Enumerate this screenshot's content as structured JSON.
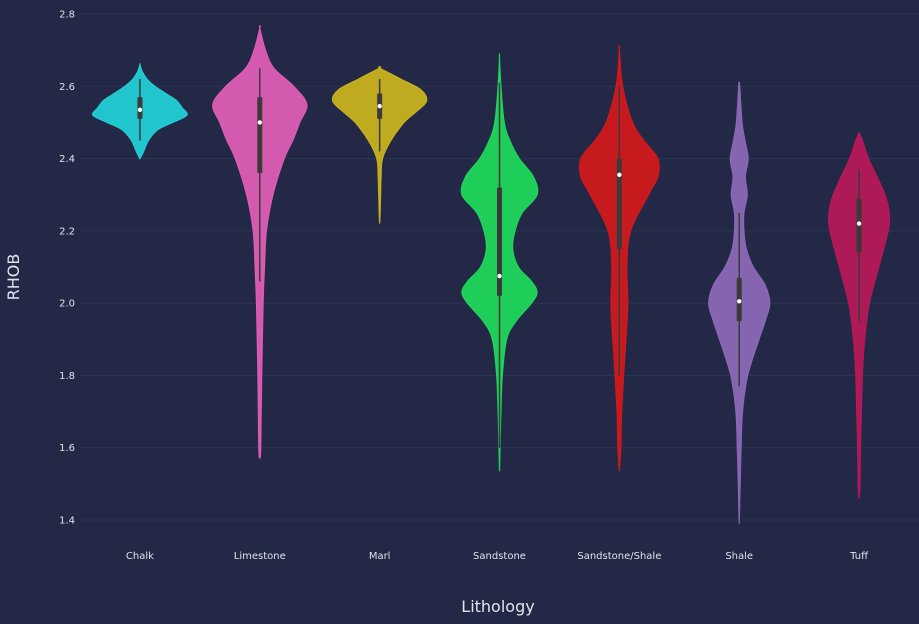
{
  "chart_data": {
    "type": "violin",
    "title": "",
    "xlabel": "Lithology",
    "ylabel": "RHOB",
    "ylim": [
      1.35,
      2.82
    ],
    "yticks": [
      1.4,
      1.6,
      1.8,
      2.0,
      2.2,
      2.4,
      2.6,
      2.8
    ],
    "ytick_labels": [
      "1.4",
      "1.6",
      "1.8",
      "2.0",
      "2.2",
      "2.4",
      "2.6",
      "2.8"
    ],
    "grid": "horizontal",
    "background_color": "#222845",
    "grid_color": "#2c3454",
    "text_color": "#e2e4ee",
    "box_color": "#3a3a3a",
    "median_color": "#ffffff",
    "categories": [
      "Chalk",
      "Limestone",
      "Marl",
      "Sandstone",
      "Sandstone/Shale",
      "Shale",
      "Tuff"
    ],
    "series": [
      {
        "color": "#22ced6",
        "min": 2.4,
        "max": 2.66,
        "q1": 2.51,
        "median": 2.535,
        "q3": 2.57,
        "whisker_low": 2.45,
        "whisker_high": 2.62,
        "density": [
          [
            2.4,
            0.0
          ],
          [
            2.42,
            0.08
          ],
          [
            2.45,
            0.18
          ],
          [
            2.48,
            0.38
          ],
          [
            2.5,
            0.7
          ],
          [
            2.52,
            1.0
          ],
          [
            2.54,
            0.9
          ],
          [
            2.56,
            0.78
          ],
          [
            2.58,
            0.55
          ],
          [
            2.6,
            0.32
          ],
          [
            2.62,
            0.15
          ],
          [
            2.64,
            0.05
          ],
          [
            2.66,
            0.0
          ]
        ]
      },
      {
        "color": "#dd5db5",
        "min": 1.57,
        "max": 2.76,
        "q1": 2.36,
        "median": 2.5,
        "q3": 2.57,
        "whisker_low": 2.06,
        "whisker_high": 2.65,
        "density": [
          [
            1.57,
            0.0
          ],
          [
            1.6,
            0.02
          ],
          [
            1.8,
            0.04
          ],
          [
            2.0,
            0.07
          ],
          [
            2.1,
            0.1
          ],
          [
            2.2,
            0.14
          ],
          [
            2.3,
            0.28
          ],
          [
            2.4,
            0.52
          ],
          [
            2.45,
            0.7
          ],
          [
            2.5,
            0.85
          ],
          [
            2.55,
            1.0
          ],
          [
            2.6,
            0.72
          ],
          [
            2.65,
            0.3
          ],
          [
            2.7,
            0.12
          ],
          [
            2.76,
            0.0
          ]
        ]
      },
      {
        "color": "#c8b11f",
        "min": 2.22,
        "max": 2.65,
        "q1": 2.51,
        "median": 2.545,
        "q3": 2.58,
        "whisker_low": 2.42,
        "whisker_high": 2.62,
        "density": [
          [
            2.22,
            0.0
          ],
          [
            2.25,
            0.01
          ],
          [
            2.3,
            0.02
          ],
          [
            2.35,
            0.03
          ],
          [
            2.4,
            0.06
          ],
          [
            2.45,
            0.24
          ],
          [
            2.5,
            0.52
          ],
          [
            2.53,
            0.78
          ],
          [
            2.56,
            1.0
          ],
          [
            2.59,
            0.88
          ],
          [
            2.62,
            0.45
          ],
          [
            2.65,
            0.0
          ]
        ]
      },
      {
        "color": "#20d65b",
        "min": 1.535,
        "max": 2.68,
        "q1": 2.02,
        "median": 2.075,
        "q3": 2.32,
        "whisker_low": 1.6,
        "whisker_high": 2.61,
        "density": [
          [
            1.535,
            0.0
          ],
          [
            1.6,
            0.01
          ],
          [
            1.7,
            0.03
          ],
          [
            1.8,
            0.06
          ],
          [
            1.9,
            0.15
          ],
          [
            1.95,
            0.35
          ],
          [
            2.0,
            0.68
          ],
          [
            2.03,
            0.8
          ],
          [
            2.06,
            0.68
          ],
          [
            2.1,
            0.4
          ],
          [
            2.15,
            0.28
          ],
          [
            2.2,
            0.33
          ],
          [
            2.25,
            0.48
          ],
          [
            2.3,
            0.8
          ],
          [
            2.35,
            0.72
          ],
          [
            2.4,
            0.42
          ],
          [
            2.45,
            0.22
          ],
          [
            2.5,
            0.1
          ],
          [
            2.6,
            0.03
          ],
          [
            2.68,
            0.0
          ]
        ]
      },
      {
        "color": "#d0191e",
        "min": 1.535,
        "max": 2.7,
        "q1": 2.15,
        "median": 2.355,
        "q3": 2.4,
        "whisker_low": 1.8,
        "whisker_high": 2.6,
        "density": [
          [
            1.535,
            0.0
          ],
          [
            1.6,
            0.03
          ],
          [
            1.7,
            0.05
          ],
          [
            1.8,
            0.09
          ],
          [
            1.9,
            0.14
          ],
          [
            2.0,
            0.18
          ],
          [
            2.1,
            0.16
          ],
          [
            2.2,
            0.24
          ],
          [
            2.3,
            0.62
          ],
          [
            2.35,
            0.82
          ],
          [
            2.4,
            0.82
          ],
          [
            2.45,
            0.52
          ],
          [
            2.5,
            0.28
          ],
          [
            2.6,
            0.07
          ],
          [
            2.7,
            0.0
          ]
        ]
      },
      {
        "color": "#8b68b6",
        "min": 1.39,
        "max": 2.61,
        "q1": 1.95,
        "median": 2.005,
        "q3": 2.07,
        "whisker_low": 1.77,
        "whisker_high": 2.25,
        "density": [
          [
            1.39,
            0.0
          ],
          [
            1.5,
            0.02
          ],
          [
            1.6,
            0.04
          ],
          [
            1.7,
            0.07
          ],
          [
            1.8,
            0.18
          ],
          [
            1.9,
            0.42
          ],
          [
            1.95,
            0.55
          ],
          [
            2.0,
            0.65
          ],
          [
            2.05,
            0.55
          ],
          [
            2.1,
            0.3
          ],
          [
            2.15,
            0.15
          ],
          [
            2.2,
            0.1
          ],
          [
            2.25,
            0.1
          ],
          [
            2.3,
            0.17
          ],
          [
            2.35,
            0.13
          ],
          [
            2.4,
            0.19
          ],
          [
            2.45,
            0.12
          ],
          [
            2.5,
            0.06
          ],
          [
            2.6,
            0.01
          ],
          [
            2.61,
            0.0
          ]
        ]
      },
      {
        "color": "#b6185a",
        "min": 1.46,
        "max": 2.47,
        "q1": 2.14,
        "median": 2.22,
        "q3": 2.29,
        "whisker_low": 1.95,
        "whisker_high": 2.37,
        "density": [
          [
            1.46,
            0.0
          ],
          [
            1.5,
            0.02
          ],
          [
            1.6,
            0.03
          ],
          [
            1.7,
            0.05
          ],
          [
            1.8,
            0.07
          ],
          [
            1.9,
            0.12
          ],
          [
            2.0,
            0.22
          ],
          [
            2.1,
            0.42
          ],
          [
            2.2,
            0.62
          ],
          [
            2.25,
            0.64
          ],
          [
            2.3,
            0.55
          ],
          [
            2.35,
            0.38
          ],
          [
            2.4,
            0.2
          ],
          [
            2.45,
            0.07
          ],
          [
            2.47,
            0.0
          ]
        ]
      }
    ]
  }
}
